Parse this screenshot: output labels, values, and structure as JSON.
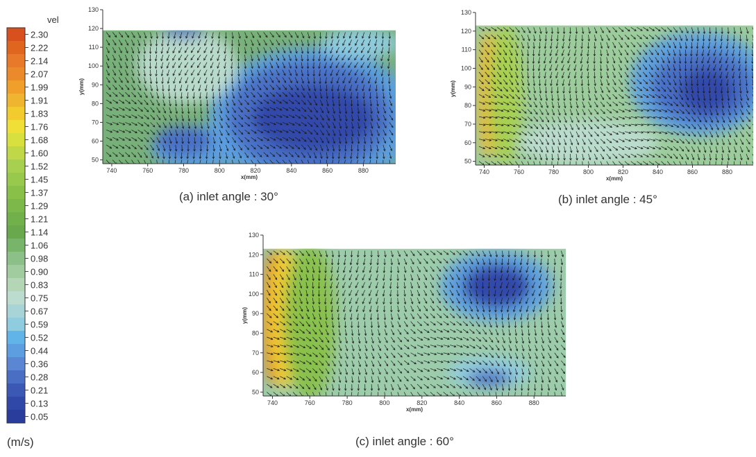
{
  "colorbar": {
    "title": "vel",
    "unit": "(m/s)",
    "ticks": [
      "2.30",
      "2.22",
      "2.14",
      "2.07",
      "1.99",
      "1.91",
      "1.83",
      "1.76",
      "1.68",
      "1.60",
      "1.52",
      "1.45",
      "1.37",
      "1.29",
      "1.21",
      "1.14",
      "1.06",
      "0.98",
      "0.90",
      "0.83",
      "0.75",
      "0.67",
      "0.59",
      "0.52",
      "0.44",
      "0.36",
      "0.28",
      "0.21",
      "0.13",
      "0.05"
    ],
    "colors": [
      "#d9501f",
      "#e0651f",
      "#e8792a",
      "#eb8a2a",
      "#f0a02a",
      "#f0b530",
      "#f2cc2e",
      "#efdf36",
      "#d8e040",
      "#c0d848",
      "#a8d050",
      "#98c84c",
      "#88c048",
      "#7cb84a",
      "#72b04c",
      "#6aa84e",
      "#78b46a",
      "#8cc088",
      "#a0cca0",
      "#b4d6b6",
      "#bcdcd0",
      "#a8d4d8",
      "#90cce0",
      "#60b4e8",
      "#5c9ee0",
      "#5a86d4",
      "#4a6ec4",
      "#3a58b4",
      "#3048a8",
      "#2a3c9c"
    ]
  },
  "chart_data": [
    {
      "id": "a",
      "type": "heatmap",
      "caption": "(a) inlet angle : 30°",
      "xlabel": "x(mm)",
      "ylabel": "y(mm)",
      "xlim": [
        735,
        898
      ],
      "ylim": [
        48,
        130
      ],
      "xticks": [
        740,
        760,
        780,
        800,
        820,
        840,
        860,
        880
      ],
      "yticks": [
        50,
        60,
        70,
        80,
        90,
        100,
        110,
        120,
        130
      ],
      "data_ymax": 119,
      "field_background": "#78b07a",
      "blobs": [
        {
          "x": 788,
          "y": 56,
          "rx": 26,
          "ry": 12,
          "color": "#5c9ee0"
        },
        {
          "x": 780,
          "y": 60,
          "rx": 16,
          "ry": 8,
          "color": "#4a6ec4"
        },
        {
          "x": 852,
          "y": 72,
          "rx": 58,
          "ry": 38,
          "color": "#5c9ee0"
        },
        {
          "x": 850,
          "y": 73,
          "rx": 46,
          "ry": 30,
          "color": "#4a6ec4"
        },
        {
          "x": 852,
          "y": 72,
          "rx": 34,
          "ry": 18,
          "color": "#2f46a8"
        },
        {
          "x": 782,
          "y": 100,
          "rx": 28,
          "ry": 20,
          "color": "#bcdcd0"
        },
        {
          "x": 878,
          "y": 112,
          "rx": 22,
          "ry": 8,
          "color": "#90cce0"
        },
        {
          "x": 780,
          "y": 118,
          "rx": 12,
          "ry": 3,
          "color": "#4a6ec4"
        }
      ],
      "flow": {
        "angle_deg": -72
      }
    },
    {
      "id": "b",
      "type": "heatmap",
      "caption": "(b) inlet angle : 45°",
      "xlabel": "x(mm)",
      "ylabel": "y(mm)",
      "xlim": [
        735,
        895
      ],
      "ylim": [
        48,
        130
      ],
      "xticks": [
        740,
        760,
        780,
        800,
        820,
        840,
        860,
        880
      ],
      "yticks": [
        50,
        60,
        70,
        80,
        90,
        100,
        110,
        120,
        130
      ],
      "data_ymax": 123,
      "field_background": "#9ccc9c",
      "blobs": [
        {
          "x": 742,
          "y": 86,
          "rx": 6,
          "ry": 34,
          "color": "#f0b530"
        },
        {
          "x": 752,
          "y": 86,
          "rx": 10,
          "ry": 38,
          "color": "#a8d050"
        },
        {
          "x": 864,
          "y": 92,
          "rx": 40,
          "ry": 28,
          "color": "#5c9ee0"
        },
        {
          "x": 866,
          "y": 90,
          "rx": 30,
          "ry": 20,
          "color": "#4a6ec4"
        },
        {
          "x": 868,
          "y": 88,
          "rx": 16,
          "ry": 12,
          "color": "#2f46a8"
        },
        {
          "x": 800,
          "y": 60,
          "rx": 40,
          "ry": 12,
          "color": "#bcdcd0"
        }
      ],
      "flow": {
        "angle_deg": -60
      }
    },
    {
      "id": "c",
      "type": "heatmap",
      "caption": "(c) inlet angle : 60°",
      "xlabel": "x(mm)",
      "ylabel": "y(mm)",
      "xlim": [
        735,
        897
      ],
      "ylim": [
        48,
        130
      ],
      "xticks": [
        740,
        760,
        780,
        800,
        820,
        840,
        860,
        880
      ],
      "yticks": [
        50,
        60,
        70,
        80,
        90,
        100,
        110,
        120,
        130
      ],
      "data_ymax": 123,
      "field_background": "#9cccaa",
      "blobs": [
        {
          "x": 740,
          "y": 88,
          "rx": 6,
          "ry": 34,
          "color": "#e0651f"
        },
        {
          "x": 746,
          "y": 88,
          "rx": 9,
          "ry": 36,
          "color": "#f2cc2e"
        },
        {
          "x": 760,
          "y": 86,
          "rx": 14,
          "ry": 40,
          "color": "#88c048"
        },
        {
          "x": 860,
          "y": 104,
          "rx": 30,
          "ry": 18,
          "color": "#5c9ee0"
        },
        {
          "x": 860,
          "y": 104,
          "rx": 18,
          "ry": 11,
          "color": "#2f46a8"
        },
        {
          "x": 856,
          "y": 60,
          "rx": 22,
          "ry": 8,
          "color": "#90cce0"
        },
        {
          "x": 856,
          "y": 57,
          "rx": 12,
          "ry": 4,
          "color": "#4a6ec4"
        }
      ],
      "flow": {
        "angle_deg": -65
      }
    }
  ]
}
